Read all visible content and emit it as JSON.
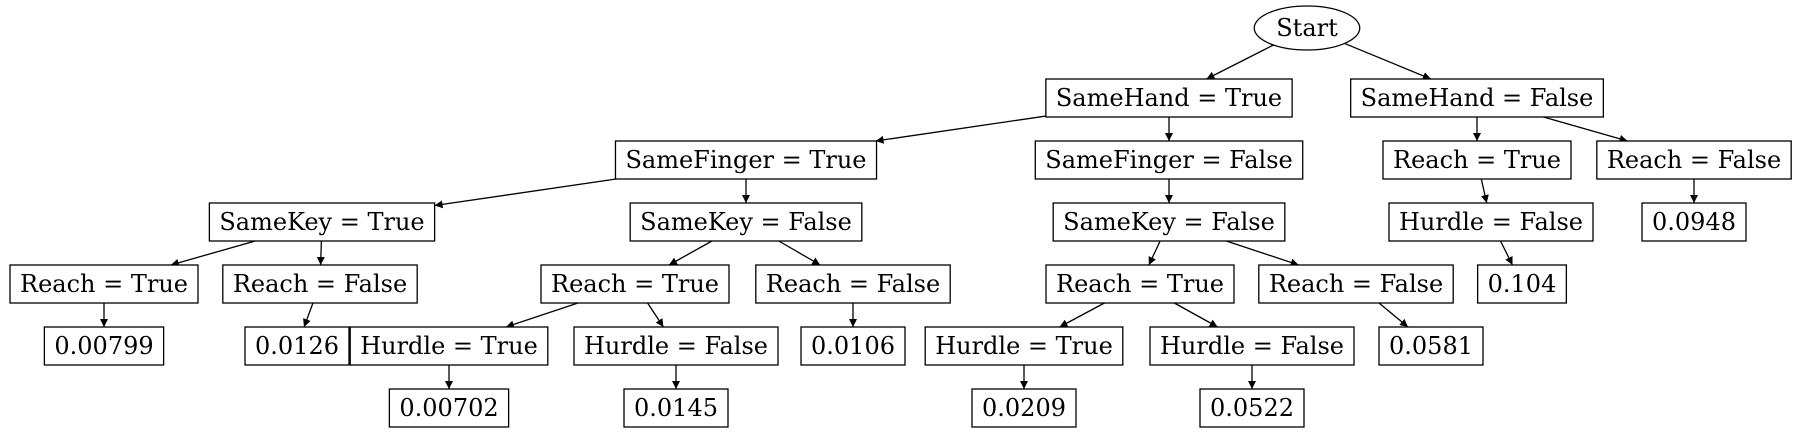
{
  "diagram": {
    "nodes": [
      {
        "id": "start",
        "label": "Start",
        "shape": "ellipse"
      },
      {
        "id": "sh_t",
        "label": "SameHand = True"
      },
      {
        "id": "sh_f",
        "label": "SameHand = False"
      },
      {
        "id": "sf_t",
        "label": "SameFinger = True"
      },
      {
        "id": "sf_f",
        "label": "SameFinger = False"
      },
      {
        "id": "r_t_a",
        "label": "Reach = True"
      },
      {
        "id": "r_f_a",
        "label": "Reach = False"
      },
      {
        "id": "sk_t",
        "label": "SameKey = True"
      },
      {
        "id": "sk_f_a",
        "label": "SameKey = False"
      },
      {
        "id": "sk_f_b",
        "label": "SameKey = False"
      },
      {
        "id": "h_f_a",
        "label": "Hurdle = False"
      },
      {
        "id": "v_0948",
        "label": "0.0948"
      },
      {
        "id": "r_t_b",
        "label": "Reach = True"
      },
      {
        "id": "r_f_b",
        "label": "Reach = False"
      },
      {
        "id": "r_t_c",
        "label": "Reach = True"
      },
      {
        "id": "r_f_c",
        "label": "Reach = False"
      },
      {
        "id": "r_t_d",
        "label": "Reach = True"
      },
      {
        "id": "r_f_d",
        "label": "Reach = False"
      },
      {
        "id": "v_104",
        "label": "0.104"
      },
      {
        "id": "v_00799",
        "label": "0.00799"
      },
      {
        "id": "v_0126",
        "label": "0.0126"
      },
      {
        "id": "h_t_a",
        "label": "Hurdle = True"
      },
      {
        "id": "h_f_b",
        "label": "Hurdle = False"
      },
      {
        "id": "v_0106",
        "label": "0.0106"
      },
      {
        "id": "h_t_b",
        "label": "Hurdle = True"
      },
      {
        "id": "h_f_c",
        "label": "Hurdle = False"
      },
      {
        "id": "v_0581",
        "label": "0.0581"
      },
      {
        "id": "v_00702",
        "label": "0.00702"
      },
      {
        "id": "v_0145",
        "label": "0.0145"
      },
      {
        "id": "v_0209",
        "label": "0.0209"
      },
      {
        "id": "v_0522",
        "label": "0.0522"
      }
    ],
    "edges": [
      [
        "start",
        "sh_t"
      ],
      [
        "start",
        "sh_f"
      ],
      [
        "sh_t",
        "sf_t"
      ],
      [
        "sh_t",
        "sf_f"
      ],
      [
        "sh_f",
        "r_t_a"
      ],
      [
        "sh_f",
        "r_f_a"
      ],
      [
        "sf_t",
        "sk_t"
      ],
      [
        "sf_t",
        "sk_f_a"
      ],
      [
        "sf_f",
        "sk_f_b"
      ],
      [
        "r_t_a",
        "h_f_a"
      ],
      [
        "r_f_a",
        "v_0948"
      ],
      [
        "sk_t",
        "r_t_b"
      ],
      [
        "sk_t",
        "r_f_b"
      ],
      [
        "sk_f_a",
        "r_t_c"
      ],
      [
        "sk_f_a",
        "r_f_c"
      ],
      [
        "sk_f_b",
        "r_t_d"
      ],
      [
        "sk_f_b",
        "r_f_d"
      ],
      [
        "h_f_a",
        "v_104"
      ],
      [
        "r_t_b",
        "v_00799"
      ],
      [
        "r_f_b",
        "v_0126"
      ],
      [
        "r_t_c",
        "h_t_a"
      ],
      [
        "r_t_c",
        "h_f_b"
      ],
      [
        "r_f_c",
        "v_0106"
      ],
      [
        "r_t_d",
        "h_t_b"
      ],
      [
        "r_t_d",
        "h_f_c"
      ],
      [
        "r_f_d",
        "v_0581"
      ],
      [
        "h_t_a",
        "v_00702"
      ],
      [
        "h_f_b",
        "v_0145"
      ],
      [
        "h_t_b",
        "v_0209"
      ],
      [
        "h_f_c",
        "v_0522"
      ]
    ]
  }
}
